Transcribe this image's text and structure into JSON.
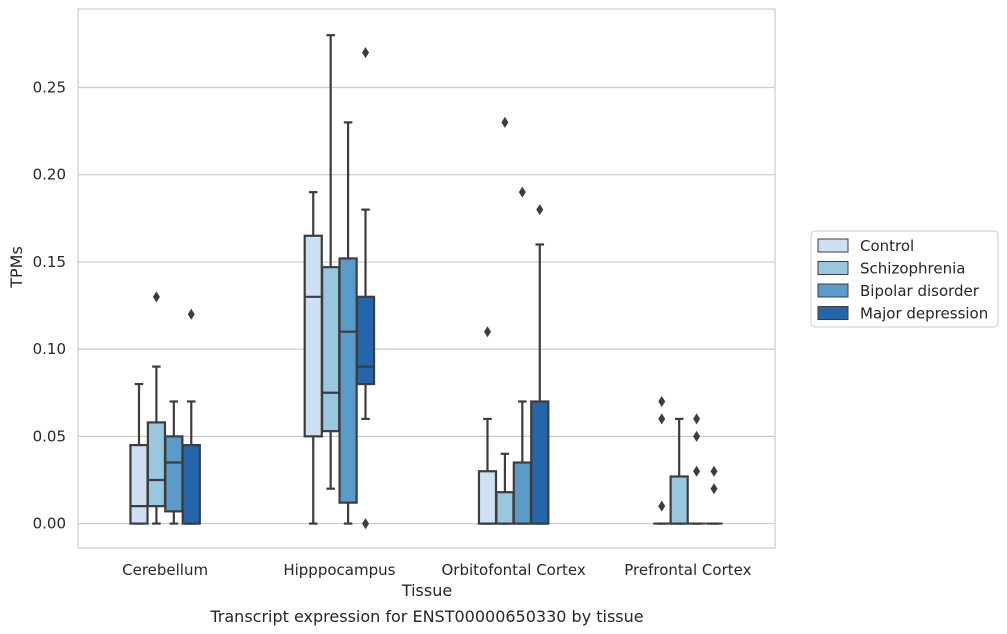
{
  "chart_data": {
    "type": "box",
    "title": "Transcript expression for ENST00000650330 by tissue",
    "xlabel": "Tissue",
    "ylabel": "TPMs",
    "ylim": [
      -0.014,
      0.295
    ],
    "yticks": [
      0.0,
      0.05,
      0.1,
      0.15,
      0.2,
      0.25
    ],
    "ytick_labels": [
      "0.00",
      "0.05",
      "0.10",
      "0.15",
      "0.20",
      "0.25"
    ],
    "grid": true,
    "legend_position": "right",
    "categories": [
      "Cerebellum",
      "Hipppocampus",
      "Orbitofontal Cortex",
      "Prefrontal Cortex"
    ],
    "series": [
      {
        "name": "Control",
        "color": "#cfe0f2",
        "boxes": [
          {
            "whislo": 0.0,
            "q1": 0.0,
            "median": 0.01,
            "q3": 0.045,
            "whishi": 0.08,
            "fliers": []
          },
          {
            "whislo": 0.0,
            "q1": 0.05,
            "median": 0.13,
            "q3": 0.165,
            "whishi": 0.19,
            "fliers": []
          },
          {
            "whislo": 0.0,
            "q1": 0.0,
            "median": 0.0,
            "q3": 0.03,
            "whishi": 0.06,
            "fliers": [
              0.11
            ]
          },
          {
            "whislo": 0.0,
            "q1": 0.0,
            "median": 0.0,
            "q3": 0.0,
            "whishi": 0.0,
            "fliers": [
              0.01,
              0.06,
              0.07
            ]
          }
        ]
      },
      {
        "name": "Schizophrenia",
        "color": "#9ac7e0",
        "boxes": [
          {
            "whislo": 0.0,
            "q1": 0.01,
            "median": 0.025,
            "q3": 0.058,
            "whishi": 0.09,
            "fliers": [
              0.13
            ]
          },
          {
            "whislo": 0.02,
            "q1": 0.053,
            "median": 0.075,
            "q3": 0.147,
            "whishi": 0.28,
            "fliers": []
          },
          {
            "whislo": 0.0,
            "q1": 0.0,
            "median": 0.0,
            "q3": 0.018,
            "whishi": 0.04,
            "fliers": [
              0.23
            ]
          },
          {
            "whislo": 0.0,
            "q1": 0.0,
            "median": 0.0,
            "q3": 0.027,
            "whishi": 0.06,
            "fliers": []
          }
        ]
      },
      {
        "name": "Bipolar disorder",
        "color": "#5b9bc9",
        "boxes": [
          {
            "whislo": 0.0,
            "q1": 0.007,
            "median": 0.035,
            "q3": 0.05,
            "whishi": 0.07,
            "fliers": []
          },
          {
            "whislo": 0.0,
            "q1": 0.012,
            "median": 0.11,
            "q3": 0.152,
            "whishi": 0.23,
            "fliers": []
          },
          {
            "whislo": 0.0,
            "q1": 0.0,
            "median": 0.0,
            "q3": 0.035,
            "whishi": 0.07,
            "fliers": [
              0.19
            ]
          },
          {
            "whislo": 0.0,
            "q1": 0.0,
            "median": 0.0,
            "q3": 0.0,
            "whishi": 0.0,
            "fliers": [
              0.03,
              0.05,
              0.06
            ]
          }
        ]
      },
      {
        "name": "Major depression",
        "color": "#2466a9",
        "boxes": [
          {
            "whislo": 0.0,
            "q1": 0.0,
            "median": 0.0,
            "q3": 0.045,
            "whishi": 0.07,
            "fliers": [
              0.12
            ]
          },
          {
            "whislo": 0.06,
            "q1": 0.08,
            "median": 0.09,
            "q3": 0.13,
            "whishi": 0.18,
            "fliers": [
              0.0,
              0.27
            ]
          },
          {
            "whislo": 0.0,
            "q1": 0.0,
            "median": 0.0,
            "q3": 0.07,
            "whishi": 0.16,
            "fliers": [
              0.18
            ]
          },
          {
            "whislo": 0.0,
            "q1": 0.0,
            "median": 0.0,
            "q3": 0.0,
            "whishi": 0.0,
            "fliers": [
              0.02,
              0.03
            ]
          }
        ]
      }
    ]
  }
}
